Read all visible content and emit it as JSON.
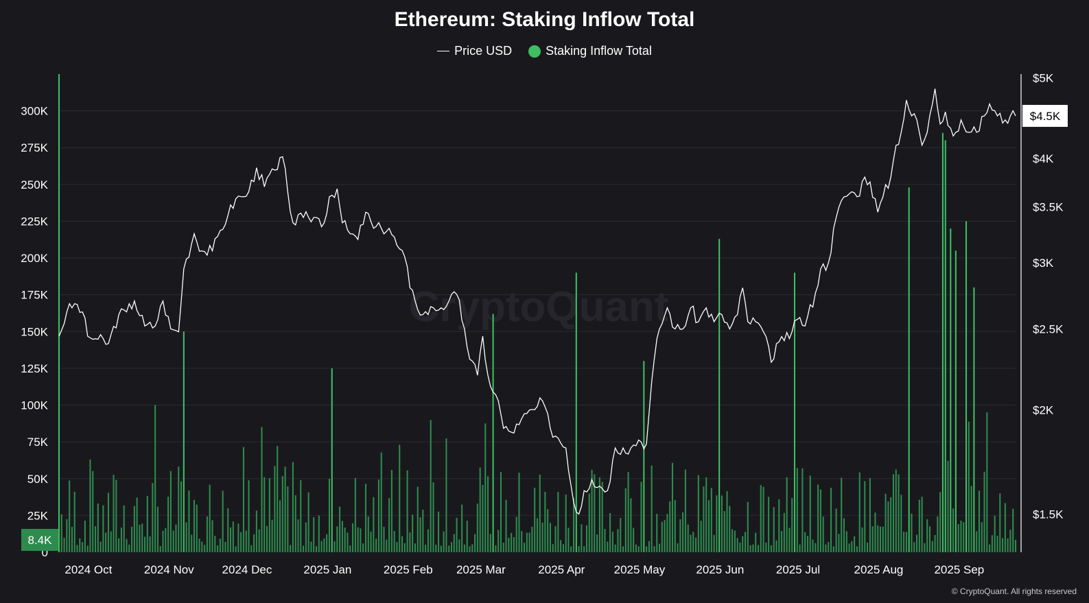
{
  "title": "Ethereum: Staking Inflow Total",
  "legend": {
    "price_label": "Price USD",
    "inflow_label": "Staking Inflow Total"
  },
  "colors": {
    "background": "#19191d",
    "grid": "#2b2b31",
    "price": "#ffffff",
    "inflow": "#2e8b4e",
    "inflow_bright": "#3fbd63",
    "badge": "#2e8b4e"
  },
  "watermark": "CryptoQuant",
  "footer": "© CryptoQuant. All rights reserved",
  "chart_data": {
    "type": "bar",
    "title": "Ethereum: Staking Inflow Total",
    "x_range": [
      "2024-09-21",
      "2025-09-24"
    ],
    "xticks": [
      "2024 Oct",
      "2024 Nov",
      "2024 Dec",
      "2025 Jan",
      "2025 Feb",
      "2025 Mar",
      "2025 Apr",
      "2025 May",
      "2025 Jun",
      "2025 Jul",
      "2025 Aug",
      "2025 Sep"
    ],
    "left_axis": {
      "label": "Staking Inflow Total",
      "range": [
        0,
        325000
      ],
      "ticks": [
        0,
        25000,
        50000,
        75000,
        100000,
        125000,
        150000,
        175000,
        200000,
        225000,
        250000,
        275000,
        300000
      ],
      "tick_labels": [
        "0",
        "25K",
        "50K",
        "75K",
        "100K",
        "125K",
        "150K",
        "175K",
        "200K",
        "225K",
        "250K",
        "275K",
        "300K"
      ]
    },
    "right_axis": {
      "label": "Price USD",
      "scale": "log",
      "range": [
        1350,
        5050
      ],
      "ticks": [
        1500,
        2000,
        2500,
        3000,
        3500,
        4000,
        5000
      ],
      "tick_labels": [
        "$1.5K",
        "$2K",
        "$2.5K",
        "$3K",
        "$3.5K",
        "$4K",
        "$5K"
      ]
    },
    "last_inflow_label": "8.4K",
    "last_price_label": "$4.5K",
    "spike_inflows": [
      {
        "date": "2024-09-21",
        "value": 325000
      },
      {
        "date": "2024-11-08",
        "value": 150000
      },
      {
        "date": "2024-12-08",
        "value": 85000
      },
      {
        "date": "2025-01-04",
        "value": 125000
      },
      {
        "date": "2025-03-07",
        "value": 162000
      },
      {
        "date": "2025-04-08",
        "value": 190000
      },
      {
        "date": "2025-05-04",
        "value": 130000
      },
      {
        "date": "2025-06-02",
        "value": 213000
      },
      {
        "date": "2025-07-01",
        "value": 190000
      },
      {
        "date": "2025-08-14",
        "value": 248000
      },
      {
        "date": "2025-08-27",
        "value": 285000
      },
      {
        "date": "2025-08-28",
        "value": 280000
      },
      {
        "date": "2025-08-30",
        "value": 220000
      },
      {
        "date": "2025-09-01",
        "value": 205000
      },
      {
        "date": "2025-09-05",
        "value": 225000
      },
      {
        "date": "2025-09-08",
        "value": 180000
      },
      {
        "date": "2025-09-13",
        "value": 95000
      },
      {
        "date": "2025-09-24",
        "value": 8400
      }
    ],
    "price_series": [
      [
        "2024-09-21",
        2450
      ],
      [
        "2024-09-24",
        2620
      ],
      [
        "2024-09-27",
        2680
      ],
      [
        "2024-09-30",
        2620
      ],
      [
        "2024-10-02",
        2450
      ],
      [
        "2024-10-06",
        2430
      ],
      [
        "2024-10-10",
        2400
      ],
      [
        "2024-10-14",
        2600
      ],
      [
        "2024-10-17",
        2620
      ],
      [
        "2024-10-20",
        2700
      ],
      [
        "2024-10-24",
        2520
      ],
      [
        "2024-10-28",
        2520
      ],
      [
        "2024-10-31",
        2700
      ],
      [
        "2024-11-03",
        2500
      ],
      [
        "2024-11-06",
        2480
      ],
      [
        "2024-11-08",
        2950
      ],
      [
        "2024-11-12",
        3250
      ],
      [
        "2024-11-15",
        3100
      ],
      [
        "2024-11-19",
        3100
      ],
      [
        "2024-11-22",
        3280
      ],
      [
        "2024-11-25",
        3420
      ],
      [
        "2024-11-28",
        3580
      ],
      [
        "2024-12-01",
        3600
      ],
      [
        "2024-12-03",
        3650
      ],
      [
        "2024-12-06",
        3900
      ],
      [
        "2024-12-09",
        3700
      ],
      [
        "2024-12-11",
        3830
      ],
      [
        "2024-12-14",
        3880
      ],
      [
        "2024-12-16",
        4020
      ],
      [
        "2024-12-18",
        3650
      ],
      [
        "2024-12-20",
        3350
      ],
      [
        "2024-12-24",
        3400
      ],
      [
        "2024-12-26",
        3400
      ],
      [
        "2024-12-29",
        3400
      ],
      [
        "2025-01-01",
        3350
      ],
      [
        "2025-01-03",
        3600
      ],
      [
        "2025-01-06",
        3680
      ],
      [
        "2025-01-08",
        3350
      ],
      [
        "2025-01-11",
        3250
      ],
      [
        "2025-01-14",
        3200
      ],
      [
        "2025-01-17",
        3450
      ],
      [
        "2025-01-20",
        3300
      ],
      [
        "2025-01-23",
        3300
      ],
      [
        "2025-01-26",
        3300
      ],
      [
        "2025-01-29",
        3150
      ],
      [
        "2025-02-01",
        3050
      ],
      [
        "2025-02-03",
        2800
      ],
      [
        "2025-02-05",
        2700
      ],
      [
        "2025-02-08",
        2600
      ],
      [
        "2025-02-12",
        2650
      ],
      [
        "2025-02-15",
        2650
      ],
      [
        "2025-02-18",
        2700
      ],
      [
        "2025-02-21",
        2750
      ],
      [
        "2025-02-24",
        2500
      ],
      [
        "2025-02-26",
        2300
      ],
      [
        "2025-03-01",
        2200
      ],
      [
        "2025-03-03",
        2450
      ],
      [
        "2025-03-05",
        2200
      ],
      [
        "2025-03-07",
        2100
      ],
      [
        "2025-03-09",
        2050
      ],
      [
        "2025-03-11",
        1900
      ],
      [
        "2025-03-14",
        1880
      ],
      [
        "2025-03-17",
        1920
      ],
      [
        "2025-03-20",
        1980
      ],
      [
        "2025-03-23",
        2000
      ],
      [
        "2025-03-26",
        2050
      ],
      [
        "2025-03-29",
        1900
      ],
      [
        "2025-04-01",
        1850
      ],
      [
        "2025-04-04",
        1800
      ],
      [
        "2025-04-07",
        1550
      ],
      [
        "2025-04-09",
        1500
      ],
      [
        "2025-04-11",
        1600
      ],
      [
        "2025-04-14",
        1650
      ],
      [
        "2025-04-17",
        1620
      ],
      [
        "2025-04-20",
        1600
      ],
      [
        "2025-04-23",
        1800
      ],
      [
        "2025-04-26",
        1800
      ],
      [
        "2025-04-29",
        1800
      ],
      [
        "2025-05-02",
        1840
      ],
      [
        "2025-05-05",
        1820
      ],
      [
        "2025-05-08",
        2300
      ],
      [
        "2025-05-10",
        2500
      ],
      [
        "2025-05-13",
        2650
      ],
      [
        "2025-05-16",
        2500
      ],
      [
        "2025-05-19",
        2500
      ],
      [
        "2025-05-22",
        2650
      ],
      [
        "2025-05-25",
        2550
      ],
      [
        "2025-05-28",
        2650
      ],
      [
        "2025-05-31",
        2550
      ],
      [
        "2025-06-03",
        2600
      ],
      [
        "2025-06-06",
        2500
      ],
      [
        "2025-06-09",
        2600
      ],
      [
        "2025-06-11",
        2800
      ],
      [
        "2025-06-13",
        2550
      ],
      [
        "2025-06-16",
        2550
      ],
      [
        "2025-06-19",
        2480
      ],
      [
        "2025-06-22",
        2280
      ],
      [
        "2025-06-24",
        2400
      ],
      [
        "2025-06-27",
        2420
      ],
      [
        "2025-06-30",
        2480
      ],
      [
        "2025-07-03",
        2580
      ],
      [
        "2025-07-05",
        2520
      ],
      [
        "2025-07-09",
        2760
      ],
      [
        "2025-07-11",
        2950
      ],
      [
        "2025-07-14",
        3000
      ],
      [
        "2025-07-17",
        3400
      ],
      [
        "2025-07-20",
        3600
      ],
      [
        "2025-07-23",
        3650
      ],
      [
        "2025-07-25",
        3600
      ],
      [
        "2025-07-28",
        3800
      ],
      [
        "2025-07-30",
        3750
      ],
      [
        "2025-08-02",
        3450
      ],
      [
        "2025-08-04",
        3600
      ],
      [
        "2025-08-07",
        3800
      ],
      [
        "2025-08-09",
        4150
      ],
      [
        "2025-08-11",
        4300
      ],
      [
        "2025-08-13",
        4700
      ],
      [
        "2025-08-15",
        4500
      ],
      [
        "2025-08-17",
        4450
      ],
      [
        "2025-08-19",
        4150
      ],
      [
        "2025-08-21",
        4300
      ],
      [
        "2025-08-23",
        4650
      ],
      [
        "2025-08-24",
        4850
      ],
      [
        "2025-08-26",
        4400
      ],
      [
        "2025-08-28",
        4550
      ],
      [
        "2025-08-30",
        4350
      ],
      [
        "2025-09-01",
        4300
      ],
      [
        "2025-09-03",
        4450
      ],
      [
        "2025-09-06",
        4300
      ],
      [
        "2025-09-09",
        4300
      ],
      [
        "2025-09-12",
        4500
      ],
      [
        "2025-09-14",
        4650
      ],
      [
        "2025-09-17",
        4500
      ],
      [
        "2025-09-20",
        4450
      ],
      [
        "2025-09-22",
        4500
      ],
      [
        "2025-09-24",
        4500
      ]
    ]
  }
}
